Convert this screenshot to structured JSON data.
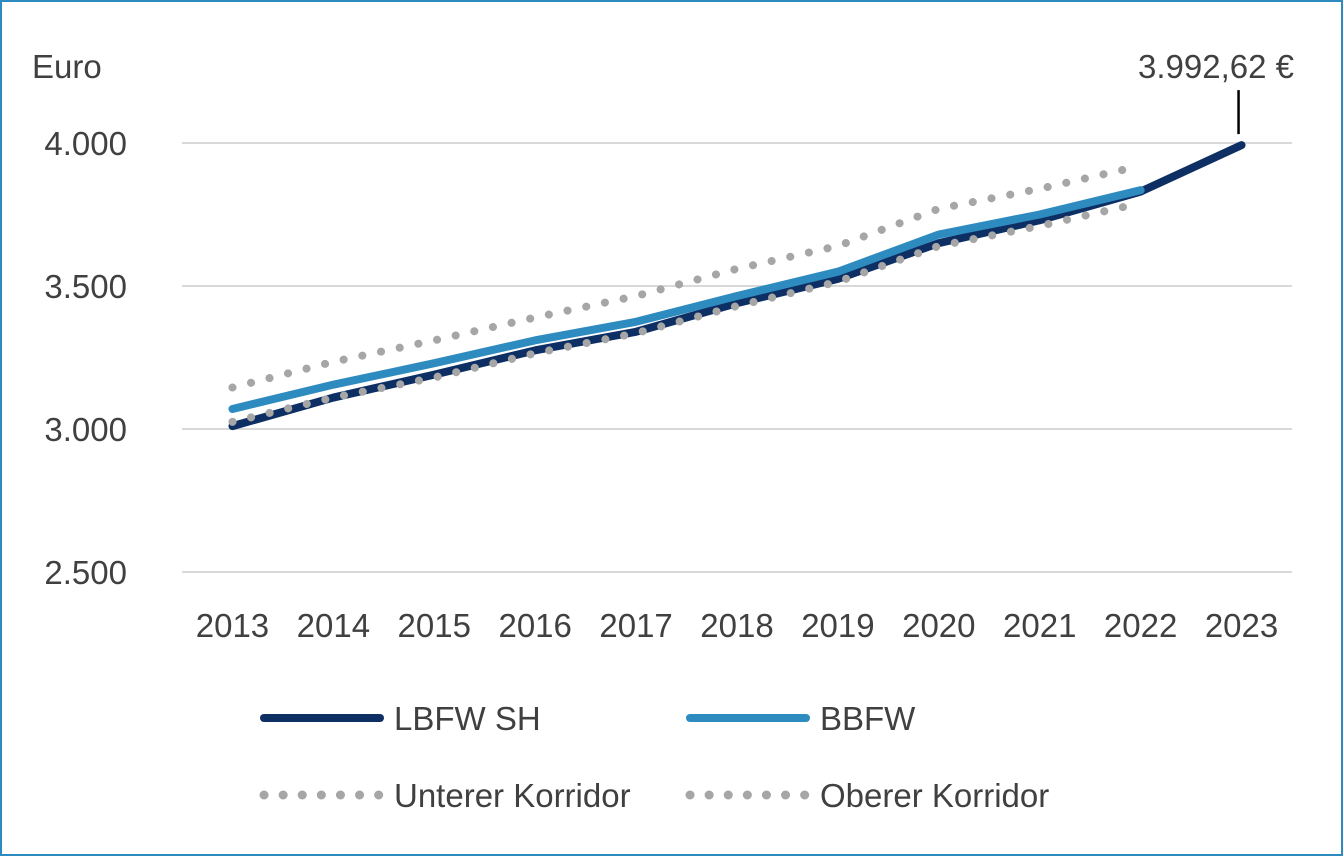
{
  "chart_data": {
    "type": "line",
    "ylabel": "Euro",
    "ylim": [
      2500,
      4000
    ],
    "yticks": [
      2500,
      3000,
      3500,
      4000
    ],
    "ytick_labels": [
      "2.500",
      "3.000",
      "3.500",
      "4.000"
    ],
    "categories": [
      "2013",
      "2014",
      "2015",
      "2016",
      "2017",
      "2018",
      "2019",
      "2020",
      "2021",
      "2022",
      "2023"
    ],
    "grid": true,
    "legend_position": "bottom",
    "series": [
      {
        "name": "LBFW SH",
        "color": "#0e2f63",
        "style": "solid",
        "values": [
          3010,
          3110,
          3190,
          3275,
          3340,
          3440,
          3525,
          3650,
          3730,
          3830,
          3992.62
        ]
      },
      {
        "name": "BBFW",
        "color": "#2e8bbf",
        "style": "solid",
        "values": [
          3070,
          3155,
          3230,
          3310,
          3375,
          3465,
          3550,
          3680,
          3750,
          3835,
          null
        ]
      },
      {
        "name": "Unterer Korridor",
        "color": "#a6a6a6",
        "style": "dotted",
        "values": [
          3025,
          3110,
          3180,
          3265,
          3335,
          3430,
          3515,
          3640,
          3710,
          3790,
          null
        ]
      },
      {
        "name": "Oberer Korridor",
        "color": "#a6a6a6",
        "style": "dotted",
        "values": [
          3145,
          3235,
          3310,
          3390,
          3465,
          3560,
          3640,
          3770,
          3840,
          3920,
          null
        ]
      }
    ],
    "annotations": [
      {
        "text": "3.992,62 €",
        "series": "LBFW SH",
        "category": "2023"
      }
    ]
  }
}
